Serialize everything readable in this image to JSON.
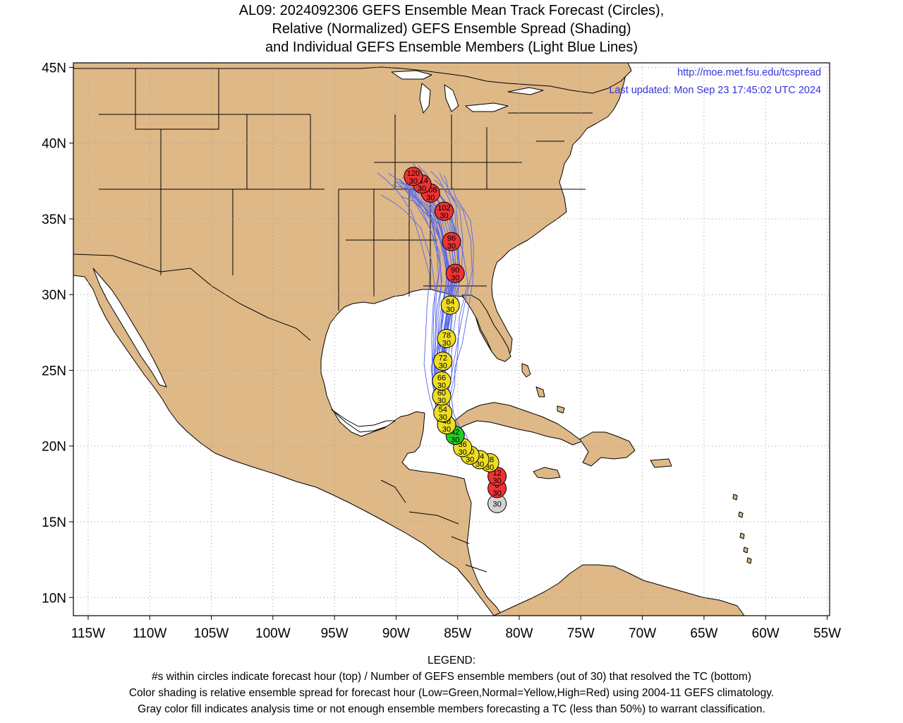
{
  "title": {
    "line1": "AL09: 2024092306 GEFS Ensemble Mean Track Forecast (Circles),",
    "line2": "Relative (Normalized) GEFS Ensemble Spread (Shading)",
    "line3": "and Individual GEFS Ensemble Members (Light Blue Lines)"
  },
  "credit": {
    "url": "http://moe.met.fsu.edu/tcspread",
    "updated": "Last updated: Mon Sep 23 17:45:02 UTC 2024"
  },
  "colors": {
    "land": "#deb887",
    "ocean": "#ffffff",
    "member_track": "#5566ee",
    "low": "#22cc22",
    "normal": "#eedd22",
    "high": "#ee3333",
    "analysis": "#d3d3d3",
    "credit_text": "#3333dd"
  },
  "axes": {
    "lon_min": -116.2,
    "lon_max": -54.8,
    "lat_min": 8.8,
    "lat_max": 45.3,
    "lon_ticks": [
      {
        "v": -115,
        "label": "115W"
      },
      {
        "v": -110,
        "label": "110W"
      },
      {
        "v": -105,
        "label": "105W"
      },
      {
        "v": -100,
        "label": "100W"
      },
      {
        "v": -95,
        "label": "95W"
      },
      {
        "v": -90,
        "label": "90W"
      },
      {
        "v": -85,
        "label": "85W"
      },
      {
        "v": -80,
        "label": "80W"
      },
      {
        "v": -75,
        "label": "75W"
      },
      {
        "v": -70,
        "label": "70W"
      },
      {
        "v": -65,
        "label": "65W"
      },
      {
        "v": -60,
        "label": "60W"
      },
      {
        "v": -55,
        "label": "55W"
      }
    ],
    "lat_ticks": [
      {
        "v": 10,
        "label": "10N"
      },
      {
        "v": 15,
        "label": "15N"
      },
      {
        "v": 20,
        "label": "20N"
      },
      {
        "v": 25,
        "label": "25N"
      },
      {
        "v": 30,
        "label": "30N"
      },
      {
        "v": 35,
        "label": "35N"
      },
      {
        "v": 40,
        "label": "40N"
      },
      {
        "v": 45,
        "label": "45N"
      }
    ],
    "grid": "dotted"
  },
  "mean_track": [
    {
      "hour": "",
      "members": "30",
      "lat": 16.2,
      "lon": -81.8,
      "spread": "analysis"
    },
    {
      "hour": "6",
      "members": "30",
      "lat": 17.2,
      "lon": -81.8,
      "spread": "high"
    },
    {
      "hour": "12",
      "members": "30",
      "lat": 18.0,
      "lon": -81.8,
      "spread": "high"
    },
    {
      "hour": "18",
      "members": "30",
      "lat": 18.9,
      "lon": -82.4,
      "spread": "normal"
    },
    {
      "hour": "24",
      "members": "30",
      "lat": 19.1,
      "lon": -83.2,
      "spread": "normal"
    },
    {
      "hour": "30",
      "members": "30",
      "lat": 19.4,
      "lon": -84.0,
      "spread": "normal"
    },
    {
      "hour": "36",
      "members": "30",
      "lat": 19.9,
      "lon": -84.6,
      "spread": "normal"
    },
    {
      "hour": "42",
      "members": "30",
      "lat": 20.7,
      "lon": -85.2,
      "spread": "low"
    },
    {
      "hour": "48",
      "members": "30",
      "lat": 21.4,
      "lon": -85.9,
      "spread": "normal"
    },
    {
      "hour": "54",
      "members": "30",
      "lat": 22.2,
      "lon": -86.2,
      "spread": "normal"
    },
    {
      "hour": "60",
      "members": "30",
      "lat": 23.3,
      "lon": -86.3,
      "spread": "normal"
    },
    {
      "hour": "66",
      "members": "30",
      "lat": 24.3,
      "lon": -86.3,
      "spread": "normal"
    },
    {
      "hour": "72",
      "members": "30",
      "lat": 25.6,
      "lon": -86.2,
      "spread": "normal"
    },
    {
      "hour": "78",
      "members": "30",
      "lat": 27.1,
      "lon": -85.9,
      "spread": "normal"
    },
    {
      "hour": "84",
      "members": "30",
      "lat": 29.3,
      "lon": -85.6,
      "spread": "normal"
    },
    {
      "hour": "90",
      "members": "30",
      "lat": 31.4,
      "lon": -85.2,
      "spread": "high"
    },
    {
      "hour": "96",
      "members": "30",
      "lat": 33.5,
      "lon": -85.5,
      "spread": "high"
    },
    {
      "hour": "102",
      "members": "30",
      "lat": 35.5,
      "lon": -86.1,
      "spread": "high"
    },
    {
      "hour": "108",
      "members": "30",
      "lat": 36.7,
      "lon": -87.2,
      "spread": "high"
    },
    {
      "hour": "114",
      "members": "30",
      "lat": 37.3,
      "lon": -87.9,
      "spread": "high"
    },
    {
      "hour": "120",
      "members": "30",
      "lat": 37.8,
      "lon": -88.6,
      "spread": "high"
    }
  ],
  "legend": {
    "heading": "LEGEND:",
    "line1": "#s within circles indicate forecast hour (top) / Number of GEFS ensemble members (out of 30) that resolved the TC (bottom)",
    "line2": "Color shading is relative ensemble spread for forecast hour (Low=Green,Normal=Yellow,High=Red) using 2004-11 GEFS climatology.",
    "line3": "Gray color fill indicates analysis time or not enough ensemble members forecasting a TC (less than 50%) to warrant classification."
  }
}
